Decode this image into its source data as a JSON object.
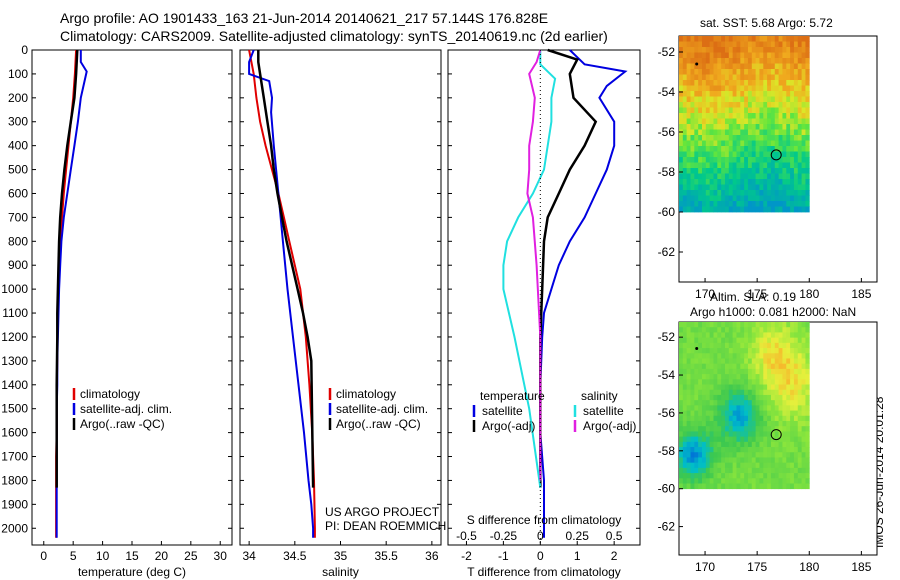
{
  "header": {
    "line1": "Argo profile: AO 1901433_163 21-Jun-2014 20140621_217 57.144S 176.828E",
    "line2": "Climatology: CARS2009. Satellite-adjusted climatology: synTS_20140619.nc (2d earlier)"
  },
  "right_titles": {
    "sst": "sat. SST: 5.68 Argo: 5.72",
    "sla1": "Altim. SLA: 0.19",
    "sla2": "Argo h1000: 0.081 h2000: NaN"
  },
  "stamp": "IMOS 26-Jun-2014 20:01:28",
  "colors": {
    "climatology": "#e00000",
    "satellite": "#0000e0",
    "argo": "#000000",
    "sat_salinity": "#20e0e0",
    "argo_salinity": "#e020e0"
  },
  "chart_data": [
    {
      "type": "line",
      "id": "temperature",
      "xlabel": "temperature (deg C)",
      "ylabel": "",
      "xlim": [
        -2,
        32
      ],
      "ylim": [
        2070,
        0
      ],
      "xticks": [
        0,
        5,
        10,
        15,
        20,
        25,
        30
      ],
      "yticks": [
        0,
        100,
        200,
        300,
        400,
        500,
        600,
        700,
        800,
        900,
        1000,
        1100,
        1200,
        1300,
        1400,
        1500,
        1600,
        1700,
        1800,
        1900,
        2000
      ],
      "legend": [
        "climatology",
        "satellite-adj. clim.",
        "Argo(..raw -QC)"
      ],
      "series": [
        {
          "name": "climatology",
          "color": "#e00000",
          "x": [
            5.5,
            5.3,
            5.0,
            4.6,
            4.2,
            3.8,
            3.4,
            3.1,
            2.8,
            2.6,
            2.5,
            2.4,
            2.3,
            2.3,
            2.2,
            2.2,
            2.2,
            2.1,
            2.1,
            2.1,
            2.1
          ],
          "y": [
            0,
            100,
            200,
            300,
            400,
            500,
            600,
            700,
            800,
            900,
            1000,
            1100,
            1200,
            1300,
            1400,
            1500,
            1600,
            1700,
            1800,
            1900,
            2040
          ]
        },
        {
          "name": "satellite-adj. clim.",
          "color": "#0000e0",
          "x": [
            6.3,
            6.3,
            7.3,
            6.3,
            5.8,
            5.2,
            4.6,
            4.0,
            3.4,
            3.0,
            2.8,
            2.6,
            2.5,
            2.4,
            2.3,
            2.3,
            2.2,
            2.2,
            2.2,
            2.2,
            2.2
          ],
          "y": [
            0,
            50,
            90,
            200,
            300,
            400,
            500,
            600,
            700,
            800,
            900,
            1000,
            1100,
            1200,
            1300,
            1400,
            1500,
            1600,
            1700,
            1800,
            2040
          ]
        },
        {
          "name": "Argo(..raw -QC)",
          "color": "#000000",
          "x": [
            5.7,
            5.6,
            5.5,
            5.2,
            4.6,
            4.0,
            3.5,
            3.1,
            2.8,
            2.6,
            2.5,
            2.4,
            2.3,
            2.3,
            2.2,
            2.2,
            2.2
          ],
          "y": [
            0,
            50,
            100,
            200,
            300,
            400,
            500,
            600,
            700,
            800,
            900,
            1000,
            1100,
            1200,
            1400,
            1600,
            1830
          ]
        }
      ]
    },
    {
      "type": "line",
      "id": "salinity",
      "xlabel": "salinity",
      "ylabel": "",
      "xlim": [
        33.9,
        36.1
      ],
      "ylim": [
        2070,
        0
      ],
      "xticks": [
        34,
        34.5,
        35,
        35.5,
        36
      ],
      "legend": [
        "climatology",
        "satellite-adj. clim.",
        "Argo(..raw -QC)"
      ],
      "annotations": [
        "US ARGO PROJECT",
        "PI: DEAN ROEMMICH"
      ],
      "series": [
        {
          "name": "climatology",
          "color": "#e00000",
          "x": [
            34.0,
            34.05,
            34.08,
            34.12,
            34.18,
            34.25,
            34.32,
            34.38,
            34.44,
            34.5,
            34.56,
            34.62,
            34.66,
            34.69,
            34.71,
            34.72,
            34.72
          ],
          "y": [
            0,
            100,
            200,
            300,
            400,
            500,
            600,
            700,
            800,
            900,
            1000,
            1200,
            1400,
            1600,
            1800,
            2000,
            2040
          ]
        },
        {
          "name": "satellite-adj. clim.",
          "color": "#0000e0",
          "x": [
            34.05,
            34.0,
            34.0,
            34.22,
            34.25,
            34.24,
            34.27,
            34.32,
            34.37,
            34.42,
            34.48,
            34.54,
            34.6,
            34.65,
            34.68,
            34.7,
            34.7
          ],
          "y": [
            0,
            50,
            100,
            130,
            200,
            260,
            400,
            600,
            800,
            1000,
            1200,
            1400,
            1600,
            1800,
            1900,
            2000,
            2040
          ]
        },
        {
          "name": "Argo(..raw -QC)",
          "color": "#000000",
          "x": [
            34.1,
            34.1,
            34.12,
            34.16,
            34.2,
            34.24,
            34.27,
            34.31,
            34.36,
            34.41,
            34.47,
            34.53,
            34.59,
            34.64,
            34.68,
            34.7
          ],
          "y": [
            0,
            50,
            100,
            200,
            300,
            400,
            500,
            600,
            700,
            800,
            900,
            1000,
            1100,
            1200,
            1300,
            1830
          ]
        }
      ]
    },
    {
      "type": "line",
      "id": "differences",
      "xlabel": "T difference from climatology",
      "xlabel2": "S difference from climatology",
      "xlim": [
        -2.5,
        2.7
      ],
      "ylim": [
        2070,
        0
      ],
      "xticks": [
        -2,
        -1,
        0,
        1,
        2
      ],
      "xticks2": [
        -0.5,
        -0.25,
        0,
        0.25,
        0.5
      ],
      "legend": [
        "temperature",
        "satellite",
        "Argo(-adj)",
        "salinity",
        "satellite",
        "Argo(-adj)"
      ],
      "series": [
        {
          "name": "satellite",
          "color": "#0000e0",
          "x": [
            0.8,
            1.0,
            1.2,
            2.3,
            1.8,
            1.6,
            2.0,
            2.0,
            1.8,
            1.5,
            1.2,
            0.8,
            0.5,
            0.3,
            0.1,
            0.05,
            0,
            0,
            0.1,
            0.1
          ],
          "y": [
            0,
            30,
            60,
            90,
            150,
            200,
            300,
            400,
            500,
            600,
            700,
            800,
            900,
            1000,
            1100,
            1200,
            1400,
            1600,
            1800,
            2040
          ]
        },
        {
          "name": "Argo(-adj)",
          "color": "#000000",
          "x": [
            0.2,
            1.0,
            0.8,
            0.9,
            1.5,
            1.2,
            0.8,
            0.5,
            0.2,
            0.1,
            0.05,
            0,
            0,
            0
          ],
          "y": [
            0,
            40,
            100,
            200,
            300,
            400,
            500,
            600,
            700,
            800,
            1000,
            1200,
            1400,
            1830
          ]
        },
        {
          "name": "satellite",
          "color": "#20e0e0",
          "x": [
            0,
            0,
            0.4,
            0.3,
            0.3,
            0.2,
            0.1,
            -0.2,
            -0.6,
            -0.9,
            -1.0,
            -1.0,
            -0.7,
            -0.3,
            0
          ],
          "y": [
            0,
            60,
            120,
            200,
            300,
            400,
            500,
            600,
            700,
            800,
            900,
            1000,
            1200,
            1500,
            1830
          ]
        },
        {
          "name": "Argo(-adj)",
          "color": "#e020e0",
          "x": [
            0,
            -0.1,
            -0.3,
            -0.15,
            -0.2,
            -0.3,
            -0.3,
            -0.35,
            -0.2,
            -0.1,
            0,
            0
          ],
          "y": [
            0,
            50,
            100,
            200,
            300,
            400,
            500,
            600,
            700,
            900,
            1200,
            1800
          ]
        }
      ]
    },
    {
      "type": "heatmap",
      "id": "sst-map",
      "title": "sat. SST: 5.68 Argo: 5.72",
      "xlim": [
        167.5,
        186.5
      ],
      "ylim": [
        -63.5,
        -51.2
      ],
      "xticks": [
        170,
        175,
        180,
        185
      ],
      "yticks": [
        -52,
        -54,
        -56,
        -58,
        -60,
        -62
      ],
      "argo_position": [
        176.828,
        -57.144
      ]
    },
    {
      "type": "heatmap",
      "id": "sla-map",
      "title": "Altim. SLA: 0.19",
      "xlim": [
        167.5,
        186.5
      ],
      "ylim": [
        -63.5,
        -51.2
      ],
      "xticks": [
        170,
        175,
        180,
        185
      ],
      "yticks": [
        -52,
        -54,
        -56,
        -58,
        -60,
        -62
      ],
      "argo_position": [
        176.828,
        -57.144
      ]
    }
  ]
}
